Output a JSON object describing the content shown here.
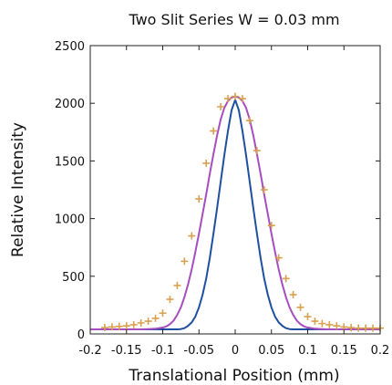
{
  "chart_data": {
    "type": "line",
    "title": "Two Slit Series W = 0.03 mm",
    "xlabel": "Translational Position (mm)",
    "ylabel": "Relative Intensity",
    "xlim": [
      -0.2,
      0.2
    ],
    "ylim": [
      0,
      2500
    ],
    "xticks": [
      -0.2,
      -0.15,
      -0.1,
      -0.05,
      0,
      0.05,
      0.1,
      0.15,
      0.2
    ],
    "yticks": [
      0,
      500,
      1000,
      1500,
      2000,
      2500
    ],
    "xtick_labels": [
      "-0.2",
      "-0.15",
      "-0.1",
      "-0.05",
      "0",
      "0.05",
      "0.1",
      "0.15",
      "0.2"
    ],
    "ytick_labels": [
      "0",
      "500",
      "1000",
      "1500",
      "2000",
      "2500"
    ],
    "grid": false,
    "legend": "none",
    "colors": {
      "narrow_curve": "#1f4fa0",
      "wide_curve": "#a64dbf",
      "markers": "#d9a050"
    },
    "series": [
      {
        "style": "line",
        "color": "#1f4fa0",
        "x": [
          -0.2,
          -0.19,
          -0.18,
          -0.17,
          -0.16,
          -0.15,
          -0.14,
          -0.13,
          -0.12,
          -0.11,
          -0.1,
          -0.09,
          -0.08,
          -0.075,
          -0.07,
          -0.065,
          -0.06,
          -0.055,
          -0.05,
          -0.045,
          -0.04,
          -0.035,
          -0.03,
          -0.025,
          -0.02,
          -0.015,
          -0.01,
          -0.005,
          0,
          0.005,
          0.01,
          0.015,
          0.02,
          0.025,
          0.03,
          0.035,
          0.04,
          0.045,
          0.05,
          0.055,
          0.06,
          0.065,
          0.07,
          0.075,
          0.08,
          0.09,
          0.1,
          0.11,
          0.12,
          0.13,
          0.14,
          0.15,
          0.16,
          0.17,
          0.18,
          0.19,
          0.2
        ],
        "y": [
          40,
          40,
          40,
          40,
          40,
          40,
          40,
          40,
          40,
          40,
          40,
          40,
          40,
          42,
          50,
          70,
          100,
          150,
          230,
          340,
          480,
          660,
          870,
          1090,
          1320,
          1550,
          1760,
          1940,
          2030,
          1940,
          1760,
          1550,
          1320,
          1090,
          870,
          660,
          480,
          340,
          230,
          150,
          100,
          70,
          50,
          42,
          40,
          40,
          40,
          40,
          40,
          40,
          40,
          40,
          40,
          40,
          40,
          40,
          40
        ]
      },
      {
        "style": "line",
        "color": "#a64dbf",
        "x": [
          -0.2,
          -0.19,
          -0.18,
          -0.17,
          -0.16,
          -0.15,
          -0.14,
          -0.13,
          -0.12,
          -0.11,
          -0.1,
          -0.095,
          -0.09,
          -0.085,
          -0.08,
          -0.075,
          -0.07,
          -0.065,
          -0.06,
          -0.055,
          -0.05,
          -0.045,
          -0.04,
          -0.035,
          -0.03,
          -0.025,
          -0.02,
          -0.015,
          -0.01,
          -0.005,
          0,
          0.005,
          0.01,
          0.015,
          0.02,
          0.025,
          0.03,
          0.035,
          0.04,
          0.045,
          0.05,
          0.055,
          0.06,
          0.065,
          0.07,
          0.075,
          0.08,
          0.085,
          0.09,
          0.095,
          0.1,
          0.11,
          0.12,
          0.13,
          0.14,
          0.15,
          0.16,
          0.17,
          0.18,
          0.19,
          0.2
        ],
        "y": [
          40,
          40,
          40,
          40,
          40,
          40,
          40,
          40,
          42,
          45,
          55,
          65,
          85,
          115,
          165,
          230,
          320,
          430,
          560,
          710,
          870,
          1040,
          1210,
          1390,
          1560,
          1720,
          1860,
          1960,
          2020,
          2050,
          2060,
          2050,
          2020,
          1960,
          1860,
          1720,
          1560,
          1390,
          1210,
          1040,
          870,
          710,
          560,
          430,
          320,
          230,
          165,
          115,
          85,
          65,
          55,
          45,
          42,
          40,
          40,
          40,
          40,
          40,
          40,
          40,
          40
        ]
      },
      {
        "style": "markers",
        "color": "#d9a050",
        "x": [
          -0.18,
          -0.17,
          -0.16,
          -0.15,
          -0.14,
          -0.13,
          -0.12,
          -0.11,
          -0.1,
          -0.09,
          -0.08,
          -0.07,
          -0.06,
          -0.05,
          -0.04,
          -0.03,
          -0.02,
          -0.01,
          0,
          0.01,
          0.02,
          0.03,
          0.04,
          0.05,
          0.06,
          0.07,
          0.08,
          0.09,
          0.1,
          0.11,
          0.12,
          0.13,
          0.14,
          0.15,
          0.16,
          0.17,
          0.18,
          0.19,
          0.2
        ],
        "y": [
          55,
          60,
          65,
          70,
          80,
          95,
          110,
          135,
          180,
          300,
          420,
          630,
          850,
          1170,
          1480,
          1760,
          1970,
          2040,
          2060,
          2040,
          1850,
          1590,
          1250,
          940,
          660,
          480,
          340,
          230,
          150,
          110,
          90,
          80,
          70,
          60,
          55,
          50,
          50,
          50,
          50
        ]
      }
    ]
  }
}
